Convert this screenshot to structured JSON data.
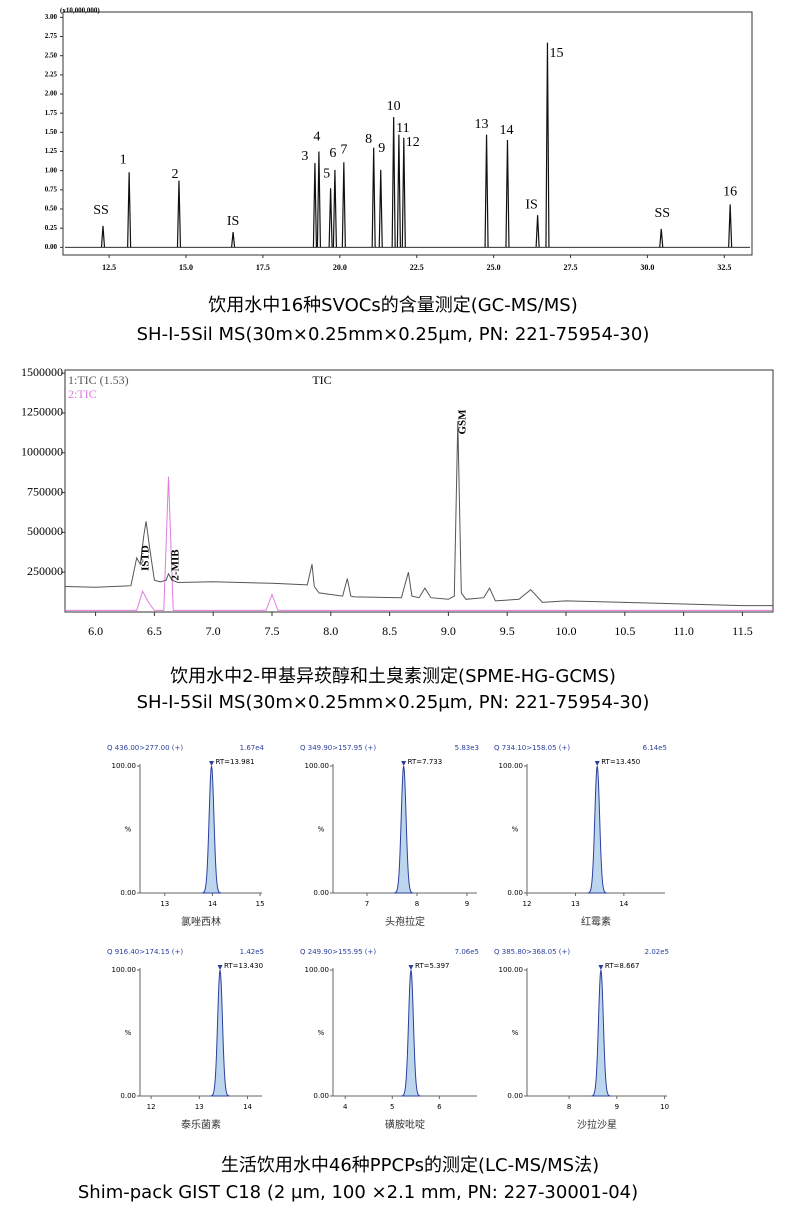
{
  "chart_data": [
    {
      "type": "peaks",
      "y_unit_label": "(x10,000,000)",
      "x": [
        12.3,
        13.15,
        14.77,
        16.53,
        19.19,
        19.32,
        19.7,
        19.84,
        20.13,
        21.1,
        21.33,
        21.75,
        21.92,
        22.08,
        24.77,
        25.45,
        26.43,
        26.75,
        30.45,
        32.69
      ],
      "values": [
        0.28,
        0.98,
        0.87,
        0.2,
        1.1,
        1.25,
        0.77,
        1.01,
        1.11,
        1.3,
        1.01,
        1.7,
        1.47,
        1.43,
        1.47,
        1.4,
        0.42,
        2.67,
        0.24,
        0.56
      ],
      "peak_labels": [
        "SS",
        "1",
        "2",
        "IS",
        "3",
        "4",
        "5",
        "6",
        "7",
        "8",
        "9",
        "10",
        "11",
        "12",
        "13",
        "14",
        "IS",
        "15",
        "SS",
        "16"
      ],
      "color": "#111111",
      "xlim": [
        11,
        33.4
      ],
      "xticks": [
        12.5,
        {
          "value": 15,
          "label": "15.0"
        },
        17.5,
        {
          "value": 20,
          "label": "20.0"
        },
        22.5,
        {
          "value": 25,
          "label": "25.0"
        },
        27.5,
        {
          "value": 30,
          "label": "30.0"
        },
        32.5
      ],
      "ylim": [
        -0.1,
        3.07
      ],
      "yticks": [
        {
          "value": 0,
          "label": "0.00"
        },
        {
          "value": 0.25,
          "label": "0.25"
        },
        {
          "value": 0.5,
          "label": "0.50"
        },
        {
          "value": 0.75,
          "label": "0.75"
        },
        {
          "value": 1,
          "label": "1.00"
        },
        {
          "value": 1.25,
          "label": "1.25"
        },
        {
          "value": 1.5,
          "label": "1.50"
        },
        {
          "value": 1.75,
          "label": "1.75"
        },
        {
          "value": 2,
          "label": "2.00"
        },
        {
          "value": 2.25,
          "label": "2.25"
        },
        {
          "value": 2.5,
          "label": "2.50"
        },
        {
          "value": 2.75,
          "label": "2.75"
        },
        {
          "value": 3,
          "label": "3.00"
        }
      ]
    },
    {
      "type": "line",
      "title": "TIC",
      "series": [
        {
          "name": "1:TIC (1.53)",
          "color": "#555555",
          "x": [
            5.74,
            6.0,
            6.3,
            6.35,
            6.38,
            6.41,
            6.43,
            6.46,
            6.5,
            6.55,
            6.6,
            6.62,
            6.65,
            6.7,
            7.0,
            7.5,
            7.8,
            7.84,
            7.86,
            7.9,
            8.1,
            8.14,
            8.17,
            8.2,
            8.6,
            8.66,
            8.69,
            8.75,
            8.8,
            8.85,
            9.0,
            9.05,
            9.08,
            9.11,
            9.15,
            9.3,
            9.35,
            9.4,
            9.6,
            9.7,
            9.8,
            10.0,
            10.5,
            11.0,
            11.5,
            11.76
          ],
          "values": [
            160000,
            155000,
            165000,
            340000,
            300000,
            480000,
            570000,
            400000,
            200000,
            190000,
            200000,
            240000,
            200000,
            185000,
            190000,
            180000,
            170000,
            300000,
            160000,
            120000,
            100000,
            210000,
            100000,
            95000,
            90000,
            250000,
            100000,
            90000,
            150000,
            90000,
            80000,
            100000,
            1200000,
            120000,
            80000,
            90000,
            150000,
            70000,
            80000,
            140000,
            60000,
            70000,
            60000,
            50000,
            40000,
            40000
          ]
        },
        {
          "name": "2:TIC",
          "color": "#e07be0",
          "x": [
            5.74,
            6.35,
            6.4,
            6.45,
            6.5,
            6.58,
            6.62,
            6.66,
            6.7,
            7.0,
            7.45,
            7.5,
            7.55,
            8.0,
            11.76
          ],
          "values": [
            10000,
            10000,
            130000,
            60000,
            10000,
            10000,
            850000,
            10000,
            10000,
            10000,
            10000,
            110000,
            10000,
            10000,
            10000
          ]
        }
      ],
      "annotations": [
        "ISTD",
        "2-MIB",
        "GSM"
      ],
      "xlim": [
        5.74,
        11.76
      ],
      "xticks": [
        {
          "value": 6,
          "label": "6.0"
        },
        6.5,
        {
          "value": 7,
          "label": "7.0"
        },
        7.5,
        {
          "value": 8,
          "label": "8.0"
        },
        8.5,
        {
          "value": 9,
          "label": "9.0"
        },
        9.5,
        {
          "value": 10,
          "label": "10.0"
        },
        10.5,
        {
          "value": 11,
          "label": "11.0"
        },
        11.5
      ],
      "ylim": [
        0,
        1520000
      ],
      "yticks": [
        250000,
        500000,
        750000,
        1000000,
        1250000,
        1500000
      ]
    },
    {
      "type": "peak",
      "header": "Q 436.00>277.00 (+)",
      "intensity": "1.67e4",
      "rt": 13.981,
      "rt_label": "RT=13.981",
      "peak": 100,
      "xlim": [
        12.48,
        15.04
      ],
      "xticks": [
        13,
        14,
        15
      ],
      "ylim": [
        0,
        100
      ],
      "yticks": [
        {
          "value": 0,
          "label": "0.00"
        },
        {
          "value": 100,
          "label": "100.00"
        }
      ],
      "ylabel": "%",
      "name": "氯唑西林"
    },
    {
      "type": "peak",
      "header": "Q 349.90>157.95 (+)",
      "intensity": "5.83e3",
      "rt": 7.733,
      "rt_label": "RT=7.733",
      "peak": 100,
      "xlim": [
        6.32,
        9.2
      ],
      "xticks": [
        7,
        8,
        9
      ],
      "ylim": [
        0,
        100
      ],
      "yticks": [
        {
          "value": 0,
          "label": "0.00"
        },
        {
          "value": 100,
          "label": "100.00"
        }
      ],
      "ylabel": "%",
      "name": "头孢拉定"
    },
    {
      "type": "peak",
      "header": "Q 734.10>158.05 (+)",
      "intensity": "6.14e5",
      "rt": 13.45,
      "rt_label": "RT=13.450",
      "peak": 100,
      "xlim": [
        12.0,
        14.85
      ],
      "xticks": [
        12,
        13,
        14
      ],
      "ylim": [
        0,
        100
      ],
      "yticks": [
        {
          "value": 0,
          "label": "0.00"
        },
        {
          "value": 100,
          "label": "100.00"
        }
      ],
      "ylabel": "%",
      "name": "红霉素"
    },
    {
      "type": "peak",
      "header": "Q 916.40>174.15 (+)",
      "intensity": "1.42e5",
      "rt": 13.43,
      "rt_label": "RT=13.430",
      "peak": 100,
      "xlim": [
        11.77,
        14.3
      ],
      "xticks": [
        12,
        13,
        14
      ],
      "ylim": [
        0,
        100
      ],
      "yticks": [
        {
          "value": 0,
          "label": "0.00"
        },
        {
          "value": 100,
          "label": "100.00"
        }
      ],
      "ylabel": "%",
      "name": "泰乐菌素"
    },
    {
      "type": "peak",
      "header": "Q 249.90>155.95 (+)",
      "intensity": "7.06e5",
      "rt": 5.397,
      "rt_label": "RT=5.397",
      "peak": 100,
      "xlim": [
        3.74,
        6.8
      ],
      "xticks": [
        4,
        5,
        6
      ],
      "ylim": [
        0,
        100
      ],
      "yticks": [
        {
          "value": 0,
          "label": "0.00"
        },
        {
          "value": 100,
          "label": "100.00"
        }
      ],
      "ylabel": "%",
      "name": "磺胺吡啶"
    },
    {
      "type": "peak",
      "header": "Q 385.80>368.05 (+)",
      "intensity": "2.02e5",
      "rt": 8.667,
      "rt_label": "RT=8.667",
      "peak": 100,
      "xlim": [
        7.12,
        10.05
      ],
      "xticks": [
        8,
        9,
        10
      ],
      "ylim": [
        0,
        100
      ],
      "yticks": [
        {
          "value": 0,
          "label": "0.00"
        },
        {
          "value": 100,
          "label": "100.00"
        }
      ],
      "ylabel": "%",
      "name": "沙拉沙星"
    }
  ],
  "captions": [
    {
      "title": "饮用水中16种SVOCs的含量测定(GC-MS/MS)",
      "subtitle": "SH-I-5Sil MS(30m×0.25mm×0.25µm, PN: 221-75954-30)"
    },
    {
      "title": "饮用水中2-甲基异莰醇和土臭素测定(SPME-HG-GCMS)",
      "subtitle": "SH-I-5Sil MS(30m×0.25mm×0.25µm, PN: 221-75954-30)"
    },
    {
      "title": "生活饮用水中46种PPCPs的测定(LC-MS/MS法)",
      "subtitle": "Shim-pack GIST C18 (2 µm, 100 ×2.1 mm, PN: 227-30001-04)"
    }
  ]
}
